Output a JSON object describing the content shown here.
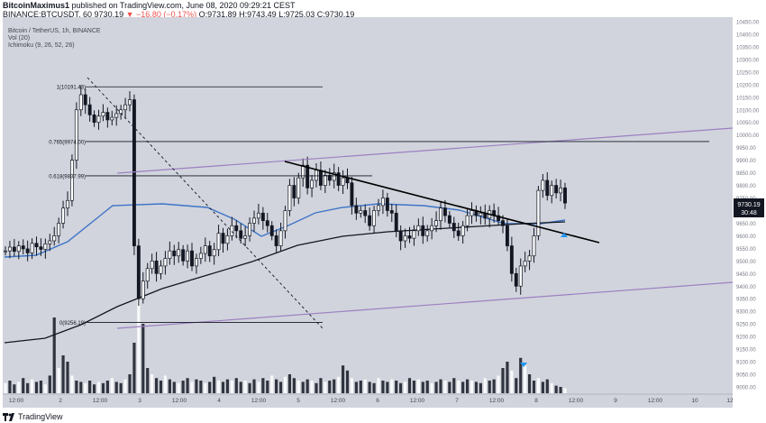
{
  "header": {
    "author": "BitcoinMaximus1",
    "published": "published on TradingView.com, June 08, 2020 09:29:21 CEST",
    "symbol": "BINANCE:BTCUSDT, 60",
    "last": "9730.19",
    "arrow": "▼",
    "change": "−16.80 (−0.17%)",
    "ohlc": "O:9731.89 H:9743.49 L:9725.03 C:9730.19"
  },
  "legend": {
    "title": "Bitcoin / TetherUS, 1h, BINANCE",
    "vol": "Vol (20)",
    "ichimoku": "Ichimoku (9, 26, 52, 26)"
  },
  "price_tag": {
    "value": "9730.19",
    "countdown": "30:48"
  },
  "footer": {
    "brand": "TradingView"
  },
  "colors": {
    "background": "#d1d4dc",
    "candle": "#131722",
    "trendline": "#000000",
    "channel": "#9c7fc2",
    "kijun": "#3e74c8",
    "cloud_line": "#131722",
    "volume": "#131722",
    "arrow": "#2196f3"
  },
  "chart_data": {
    "type": "candlestick",
    "title": "Bitcoin / TetherUS, 1h, BINANCE",
    "y_ticks": [
      10450,
      10400,
      10350,
      10300,
      10250,
      10200,
      10150,
      10100,
      10050,
      10000,
      9950,
      9900,
      9850,
      9800,
      9750,
      9700,
      9650,
      9600,
      9550,
      9500,
      9450,
      9400,
      9350,
      9300,
      9250,
      9200,
      9150,
      9100,
      9050,
      9000
    ],
    "x_ticks": [
      "12:00",
      "2",
      "12:00",
      "3",
      "12:00",
      "4",
      "12:00",
      "5",
      "12:00",
      "6",
      "12:00",
      "7",
      "12:00",
      "8",
      "12:00",
      "9",
      "12:00",
      "10",
      "12"
    ],
    "fib_levels": [
      {
        "label": "1(10191.43)",
        "value": 10191.43
      },
      {
        "label": "0.765(9974.00)",
        "value": 9974.0
      },
      {
        "label": "0.618(9837.99)",
        "value": 9837.99
      },
      {
        "label": "0(9256.19)",
        "value": 9256.19
      }
    ],
    "candle_closes": [
      9540,
      9555,
      9538,
      9560,
      9548,
      9532,
      9570,
      9556,
      9546,
      9568,
      9580,
      9600,
      9650,
      9710,
      9740,
      9900,
      10100,
      10160,
      10120,
      10080,
      10050,
      10075,
      10090,
      10060,
      10070,
      10085,
      10100,
      10120,
      10140,
      9560,
      9350,
      9420,
      9470,
      9500,
      9450,
      9480,
      9510,
      9540,
      9520,
      9545,
      9500,
      9540,
      9480,
      9510,
      9530,
      9560,
      9520,
      9545,
      9610,
      9570,
      9600,
      9640,
      9620,
      9590,
      9600,
      9650,
      9670,
      9690,
      9660,
      9640,
      9600,
      9560,
      9620,
      9700,
      9800,
      9750,
      9830,
      9880,
      9790,
      9820,
      9860,
      9800,
      9840,
      9820,
      9850,
      9800,
      9830,
      9810,
      9720,
      9690,
      9700,
      9680,
      9640,
      9700,
      9720,
      9750,
      9700,
      9690,
      9620,
      9580,
      9600,
      9590,
      9620,
      9640,
      9600,
      9620,
      9640,
      9660,
      9710,
      9680,
      9650,
      9620,
      9600,
      9640,
      9680,
      9700,
      9680,
      9690,
      9670,
      9700,
      9680,
      9660,
      9640,
      9560,
      9450,
      9400,
      9480,
      9500,
      9520,
      9600,
      9780,
      9820,
      9760,
      9800,
      9770,
      9790,
      9730
    ],
    "volume": [
      8,
      10,
      7,
      9,
      12,
      8,
      11,
      9,
      10,
      7,
      14,
      60,
      20,
      30,
      25,
      14,
      10,
      9,
      8,
      10,
      7,
      9,
      8,
      10,
      12,
      9,
      8,
      11,
      15,
      40,
      75,
      55,
      20,
      15,
      12,
      10,
      14,
      11,
      9,
      8,
      10,
      12,
      9,
      11,
      10,
      8,
      9,
      13,
      10,
      9,
      11,
      10,
      12,
      9,
      10,
      8,
      11,
      9,
      12,
      10,
      14,
      11,
      9,
      13,
      15,
      12,
      10,
      9,
      11,
      10,
      8,
      12,
      9,
      10,
      11,
      13,
      22,
      18,
      12,
      9,
      10,
      11,
      9,
      8,
      12,
      10,
      9,
      11,
      10,
      8,
      9,
      12,
      10,
      11,
      9,
      10,
      8,
      9,
      11,
      10,
      9,
      12,
      10,
      9,
      11,
      10,
      9,
      8,
      12,
      10,
      11,
      14,
      20,
      25,
      18,
      12,
      28,
      22,
      15,
      10,
      12,
      9,
      11,
      8,
      6,
      5,
      4
    ]
  }
}
